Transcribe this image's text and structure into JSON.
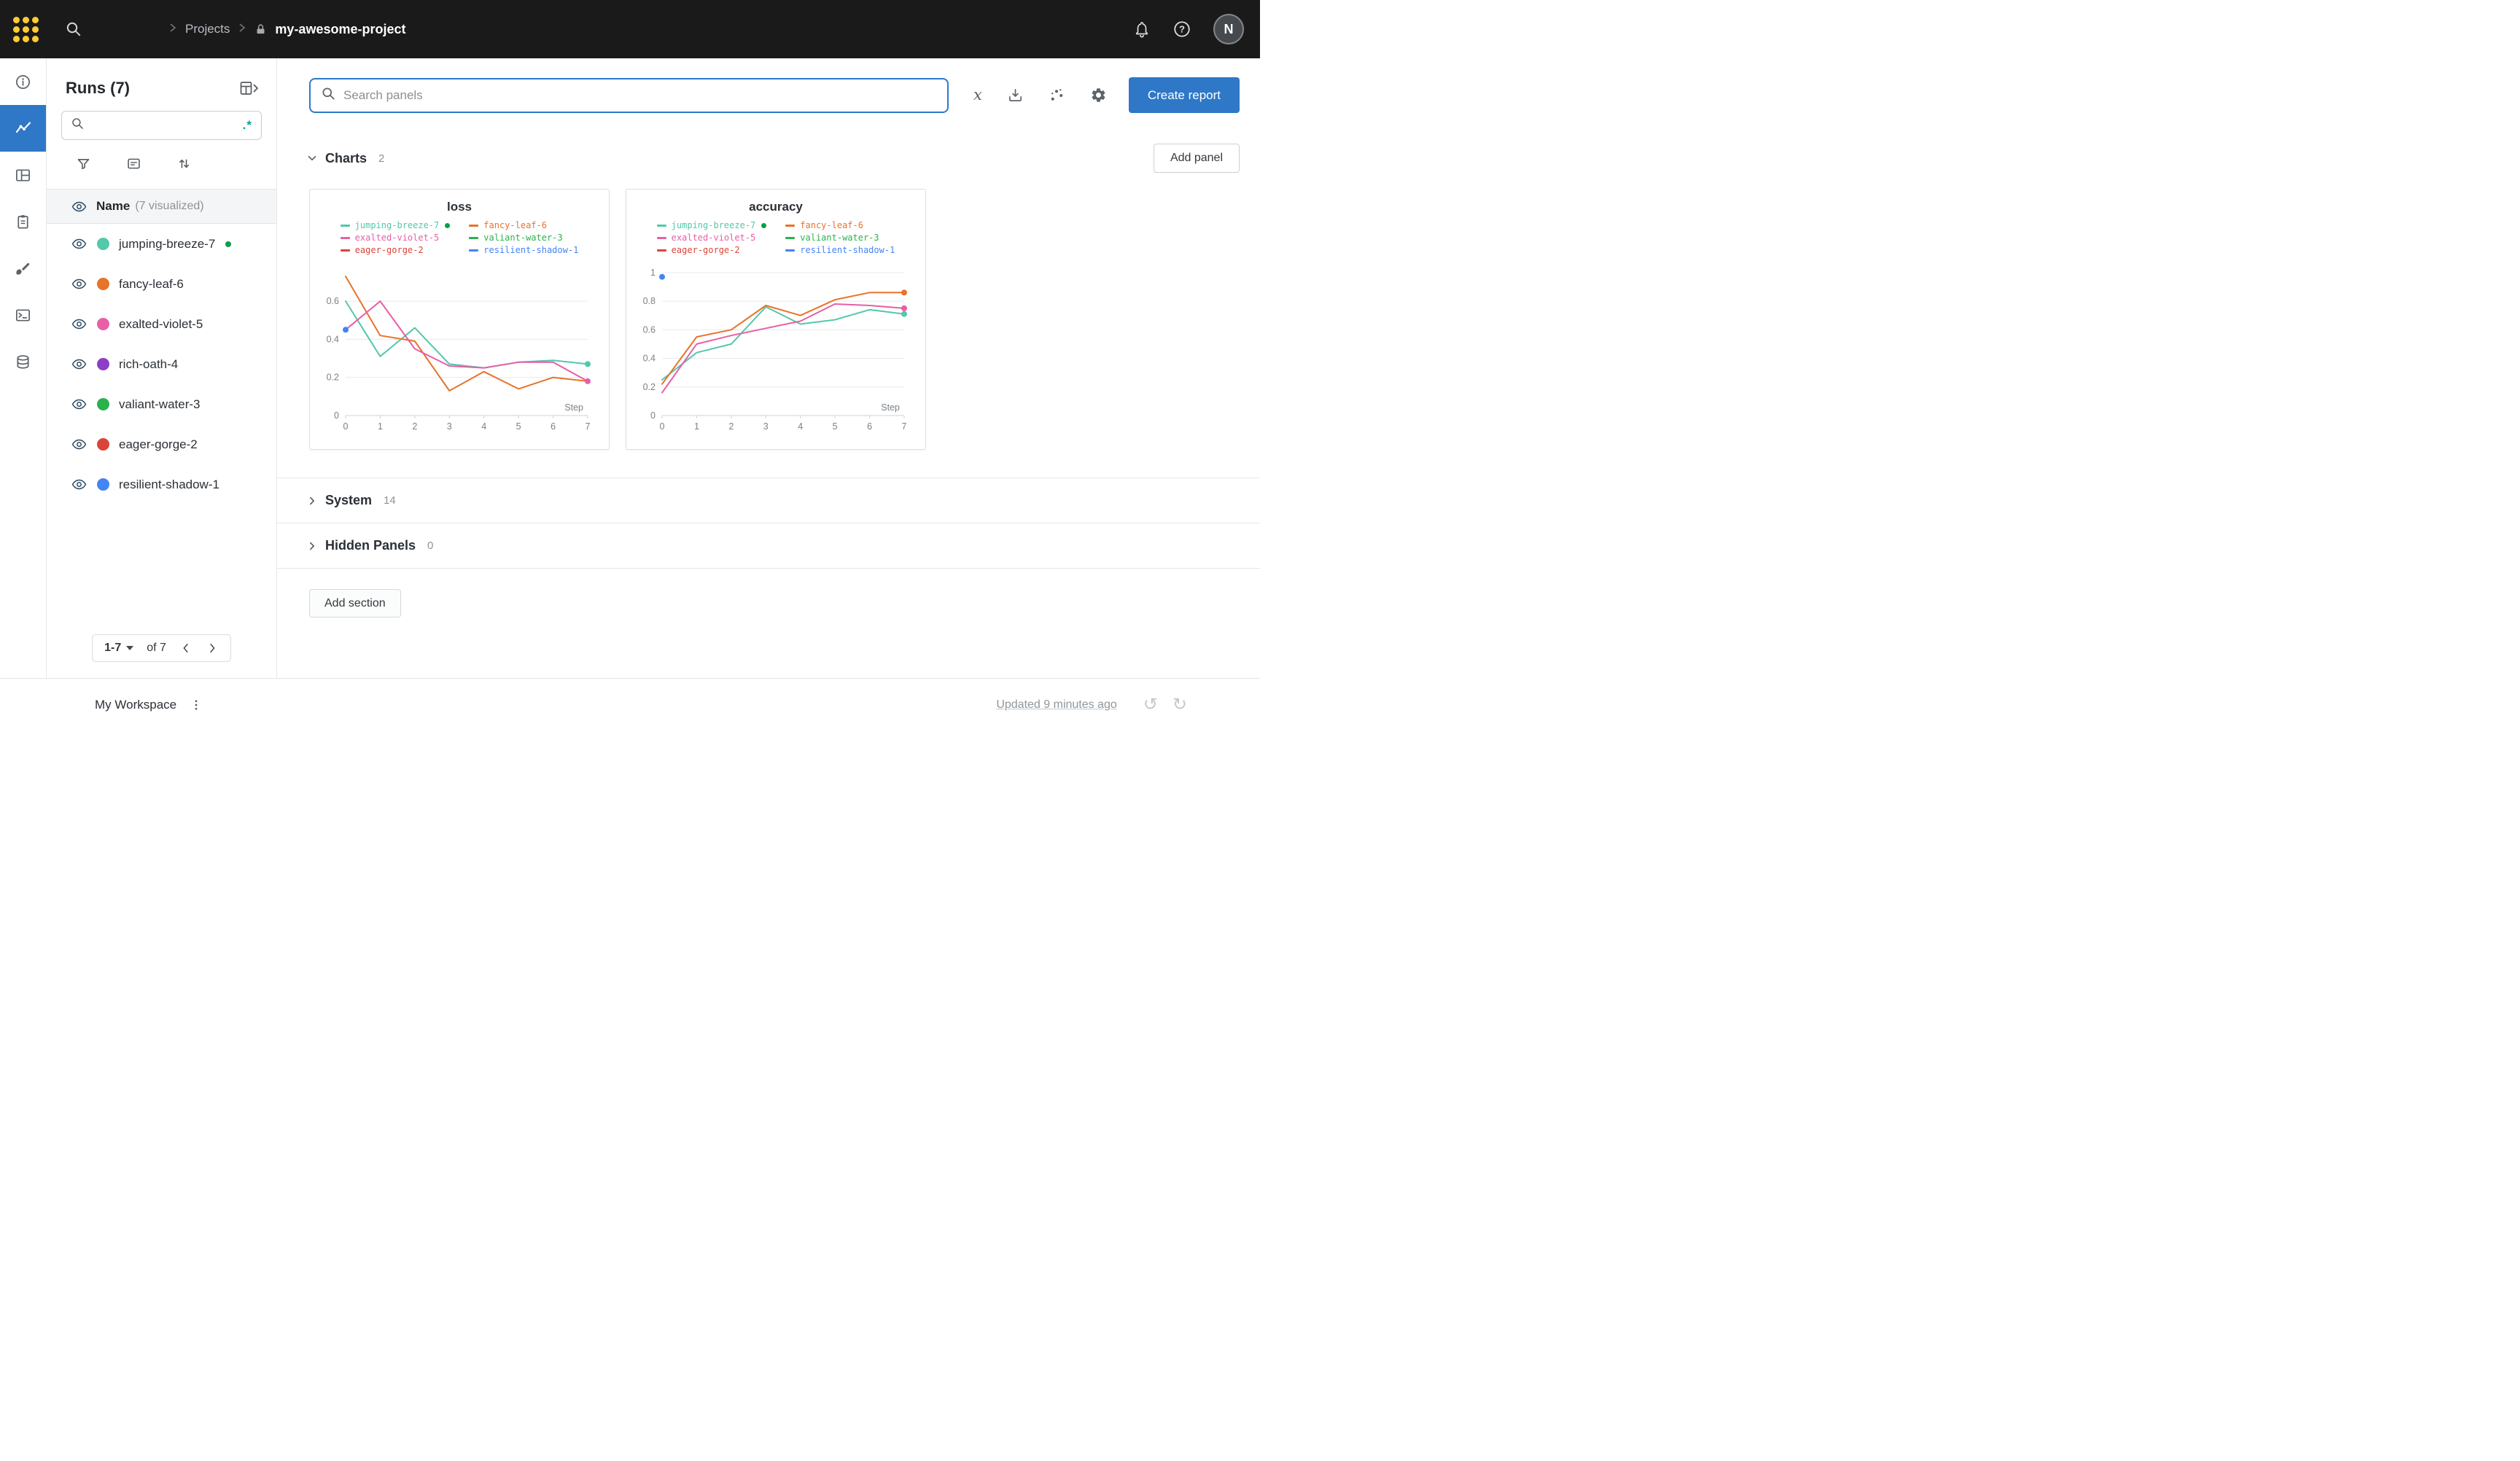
{
  "colors": {
    "accent_blue": "#2e78c7",
    "running_green": "#0a9e4c",
    "regex_teal": "#00a39b",
    "topbar_bg": "#1a1a1a",
    "logo_yellow": "#ffcc33"
  },
  "icons": {
    "topbar": [
      "wandb-logo",
      "search-icon",
      "chevron-right-icon",
      "lock-icon",
      "bell-icon",
      "help-icon"
    ],
    "rail": [
      "info-icon",
      "workspace-chart-icon",
      "panels-icon",
      "notes-icon",
      "brush-icon",
      "terminal-icon",
      "database-icon"
    ],
    "sidebar": [
      "runs-table-expand-icon",
      "search-icon",
      "filter-icon",
      "group-icon",
      "sort-icon",
      "visibility-eye-icon"
    ],
    "toolbar": [
      "latex-icon",
      "export-icon",
      "scatter-plot-icon",
      "settings-gear-icon"
    ],
    "footer": [
      "kebab-menu-icon",
      "undo-icon",
      "redo-icon"
    ]
  },
  "topbar": {
    "breadcrumb": {
      "section": "Projects",
      "project": "my-awesome-project"
    },
    "avatar_initial": "N"
  },
  "sidebar": {
    "title": "Runs (7)",
    "search": {
      "value": "",
      "regex_label": ".*"
    },
    "list_header": {
      "name": "Name",
      "suffix": "(7 visualized)"
    },
    "runs": [
      {
        "name": "jumping-breeze-7",
        "color": "#53c8aa",
        "running": true
      },
      {
        "name": "fancy-leaf-6",
        "color": "#e8732a",
        "running": false
      },
      {
        "name": "exalted-violet-5",
        "color": "#e75fa7",
        "running": false
      },
      {
        "name": "rich-oath-4",
        "color": "#8a3fc6",
        "running": false
      },
      {
        "name": "valiant-water-3",
        "color": "#2bb24c",
        "running": false
      },
      {
        "name": "eager-gorge-2",
        "color": "#dc4437",
        "running": false
      },
      {
        "name": "resilient-shadow-1",
        "color": "#4285f4",
        "running": false
      }
    ],
    "pagination": {
      "range": "1-7",
      "of": "of 7"
    }
  },
  "main": {
    "search": {
      "placeholder": "Search panels",
      "value": ""
    },
    "create_report_label": "Create report",
    "add_panel_label": "Add panel",
    "charts_section": {
      "label": "Charts",
      "count": "2"
    },
    "system_section": {
      "label": "System",
      "count": "14"
    },
    "hidden_section": {
      "label": "Hidden Panels",
      "count": "0"
    },
    "add_section_label": "Add section"
  },
  "footer": {
    "workspace_label": "My Workspace",
    "updated_text": "Updated 9 minutes ago"
  },
  "chart_data": [
    {
      "type": "line",
      "title": "loss",
      "xlabel": "Step",
      "ylabel": "",
      "x": [
        0,
        1,
        2,
        3,
        4,
        5,
        6,
        7
      ],
      "xticks": [
        0,
        1,
        2,
        3,
        4,
        5,
        6,
        7
      ],
      "ylim": [
        0,
        0.78
      ],
      "yticks": [
        0,
        0.2,
        0.4,
        0.6
      ],
      "grid": true,
      "legend_position": "top",
      "legend": [
        {
          "name": "jumping-breeze-7",
          "color": "#53c8aa",
          "running": true
        },
        {
          "name": "fancy-leaf-6",
          "color": "#e8732a",
          "running": false
        },
        {
          "name": "exalted-violet-5",
          "color": "#e75fa7",
          "running": false
        },
        {
          "name": "valiant-water-3",
          "color": "#2bb24c",
          "running": false
        },
        {
          "name": "eager-gorge-2",
          "color": "#dc4437",
          "running": false
        },
        {
          "name": "resilient-shadow-1",
          "color": "#4285f4",
          "running": false
        }
      ],
      "series": [
        {
          "name": "jumping-breeze-7",
          "color": "#53c8aa",
          "values": [
            0.6,
            0.31,
            0.46,
            0.27,
            0.25,
            0.28,
            0.29,
            0.27
          ],
          "end_dot": true,
          "point_only": false
        },
        {
          "name": "fancy-leaf-6",
          "color": "#e8732a",
          "values": [
            0.73,
            0.42,
            0.39,
            0.13,
            0.23,
            0.14,
            0.2,
            0.18
          ],
          "end_dot": false,
          "point_only": false
        },
        {
          "name": "exalted-violet-5",
          "color": "#e75fa7",
          "values": [
            0.45,
            0.6,
            0.35,
            0.26,
            0.25,
            0.28,
            0.28,
            0.18
          ],
          "end_dot": true,
          "point_only": false
        },
        {
          "name": "resilient-shadow-1",
          "color": "#4285f4",
          "values": [
            0.45
          ],
          "end_dot": false,
          "point_only": true
        }
      ]
    },
    {
      "type": "line",
      "title": "accuracy",
      "xlabel": "Step",
      "ylabel": "",
      "x": [
        0,
        1,
        2,
        3,
        4,
        5,
        6,
        7
      ],
      "xticks": [
        0,
        1,
        2,
        3,
        4,
        5,
        6,
        7
      ],
      "ylim": [
        0,
        1.04
      ],
      "yticks": [
        0,
        0.2,
        0.4,
        0.6,
        0.8,
        1
      ],
      "grid": true,
      "legend_position": "top",
      "legend": [
        {
          "name": "jumping-breeze-7",
          "color": "#53c8aa",
          "running": true
        },
        {
          "name": "fancy-leaf-6",
          "color": "#e8732a",
          "running": false
        },
        {
          "name": "exalted-violet-5",
          "color": "#e75fa7",
          "running": false
        },
        {
          "name": "valiant-water-3",
          "color": "#2bb24c",
          "running": false
        },
        {
          "name": "eager-gorge-2",
          "color": "#dc4437",
          "running": false
        },
        {
          "name": "resilient-shadow-1",
          "color": "#4285f4",
          "running": false
        }
      ],
      "series": [
        {
          "name": "jumping-breeze-7",
          "color": "#53c8aa",
          "values": [
            0.25,
            0.44,
            0.5,
            0.76,
            0.64,
            0.67,
            0.74,
            0.71
          ],
          "end_dot": true,
          "point_only": false
        },
        {
          "name": "fancy-leaf-6",
          "color": "#e8732a",
          "values": [
            0.22,
            0.55,
            0.6,
            0.77,
            0.7,
            0.81,
            0.86,
            0.86
          ],
          "end_dot": true,
          "point_only": false
        },
        {
          "name": "exalted-violet-5",
          "color": "#e75fa7",
          "values": [
            0.16,
            0.5,
            0.56,
            0.61,
            0.66,
            0.78,
            0.77,
            0.75
          ],
          "end_dot": true,
          "point_only": false
        },
        {
          "name": "resilient-shadow-1",
          "color": "#4285f4",
          "values": [
            0.97
          ],
          "end_dot": false,
          "point_only": true
        }
      ]
    }
  ]
}
